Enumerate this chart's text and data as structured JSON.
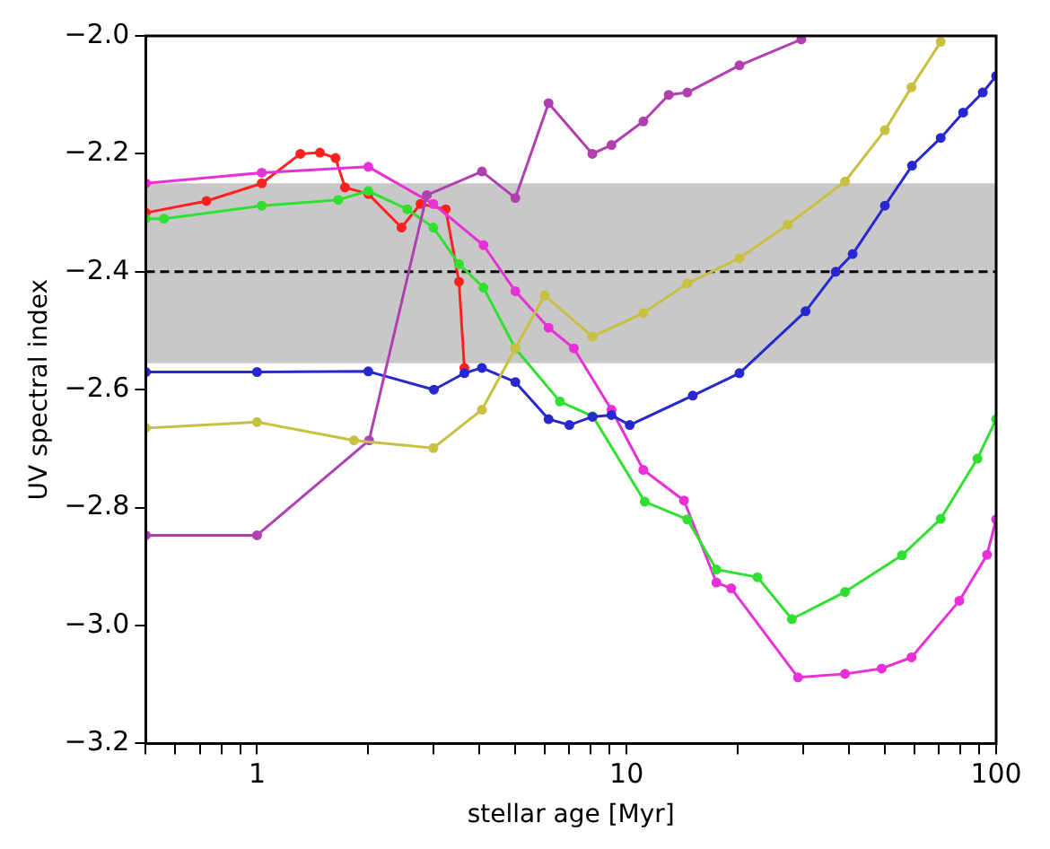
{
  "chart_data": {
    "type": "line",
    "xlabel": "stellar age [Myr]",
    "ylabel": "UV spectral index",
    "log": "x",
    "marker": "circle",
    "line_style": "solid",
    "grid": false,
    "legend": false,
    "xlim": [
      0.5,
      100
    ],
    "xticks": [
      {
        "value": 0.5,
        "label": null
      },
      {
        "value": 0.6,
        "label": null
      },
      {
        "value": 0.7,
        "label": null
      },
      {
        "value": 0.8,
        "label": null
      },
      {
        "value": 0.9,
        "label": null
      },
      1,
      {
        "value": 2,
        "label": null
      },
      {
        "value": 3,
        "label": null
      },
      {
        "value": 4,
        "label": null
      },
      {
        "value": 5,
        "label": null
      },
      {
        "value": 6,
        "label": null
      },
      {
        "value": 7,
        "label": null
      },
      {
        "value": 8,
        "label": null
      },
      {
        "value": 9,
        "label": null
      },
      10,
      {
        "value": 20,
        "label": null
      },
      {
        "value": 30,
        "label": null
      },
      {
        "value": 40,
        "label": null
      },
      {
        "value": 50,
        "label": null
      },
      {
        "value": 60,
        "label": null
      },
      {
        "value": 70,
        "label": null
      },
      {
        "value": 80,
        "label": null
      },
      {
        "value": 90,
        "label": null
      },
      100
    ],
    "ylim": [
      -3.2,
      -2.0
    ],
    "yticks": [
      {
        "value": -3.2,
        "label": "−3.2"
      },
      {
        "value": -3.0,
        "label": "−3.0"
      },
      {
        "value": -2.8,
        "label": "−2.8"
      },
      {
        "value": -2.6,
        "label": "−2.6"
      },
      {
        "value": -2.4,
        "label": "−2.4"
      },
      {
        "value": -2.2,
        "label": "−2.2"
      },
      {
        "value": -2.0,
        "label": "−2.0"
      }
    ],
    "bands": [
      {
        "axis": "y",
        "from": -2.555,
        "to": -2.25,
        "color": "#c8c8c8"
      }
    ],
    "ref_lines": [
      {
        "axis": "y",
        "value": -2.4,
        "color": "#000000",
        "line_style": "dashed"
      }
    ],
    "series": [
      {
        "color": "#c8c040",
        "x": [
          0.5,
          1,
          1.83,
          3.0,
          4.06,
          5.0,
          6.0,
          8.08,
          11.1,
          14.6,
          20.2,
          27.3,
          39,
          50,
          59,
          70.8
        ],
        "values": [
          -2.665,
          -2.655,
          -2.686,
          -2.699,
          -2.634,
          -2.53,
          -2.44,
          -2.51,
          -2.47,
          -2.42,
          -2.377,
          -2.32,
          -2.247,
          -2.16,
          -2.087,
          -2.01
        ]
      },
      {
        "color": "#b040b0",
        "x": [
          0.5,
          1,
          2.01,
          2.88,
          4.06,
          5.0,
          6.15,
          8.08,
          9.1,
          11.1,
          13,
          14.6,
          20.2,
          29.7
        ],
        "values": [
          -2.847,
          -2.847,
          -2.686,
          -2.27,
          -2.23,
          -2.275,
          -2.114,
          -2.2,
          -2.185,
          -2.145,
          -2.1,
          -2.096,
          -2.05,
          -2.006
        ]
      },
      {
        "color": "#2828d0",
        "x": [
          0.5,
          1,
          2.0,
          3.01,
          3.64,
          4.06,
          5.0,
          6.15,
          7.0,
          8.08,
          9.1,
          10.2,
          15.1,
          20.2,
          30.5,
          36.8,
          40.9,
          50,
          59.2,
          70.8,
          81.4,
          92,
          100
        ],
        "values": [
          -2.57,
          -2.57,
          -2.569,
          -2.6,
          -2.572,
          -2.563,
          -2.587,
          -2.65,
          -2.66,
          -2.646,
          -2.643,
          -2.66,
          -2.61,
          -2.572,
          -2.467,
          -2.4,
          -2.37,
          -2.288,
          -2.22,
          -2.173,
          -2.13,
          -2.096,
          -2.068
        ]
      },
      {
        "color": "#30e030",
        "x": [
          0.5,
          0.56,
          1.03,
          1.66,
          2.0,
          2.55,
          3.0,
          3.52,
          4.1,
          5.0,
          6.6,
          8.1,
          11.2,
          14.6,
          17.5,
          22.6,
          28,
          39,
          55.6,
          70.8,
          89,
          100
        ],
        "values": [
          -2.31,
          -2.31,
          -2.288,
          -2.278,
          -2.263,
          -2.294,
          -2.325,
          -2.387,
          -2.427,
          -2.53,
          -2.62,
          -2.645,
          -2.79,
          -2.82,
          -2.905,
          -2.918,
          -2.989,
          -2.943,
          -2.881,
          -2.819,
          -2.717,
          -2.65
        ]
      },
      {
        "color": "#e830d8",
        "x": [
          0.5,
          1.03,
          2.0,
          3.0,
          4.1,
          5.0,
          6.15,
          7.2,
          9.1,
          11.1,
          14.3,
          17.5,
          19.2,
          29.1,
          39,
          49,
          59,
          79.5,
          94.5,
          100
        ],
        "values": [
          -2.25,
          -2.232,
          -2.222,
          -2.285,
          -2.355,
          -2.433,
          -2.495,
          -2.53,
          -2.634,
          -2.736,
          -2.788,
          -2.927,
          -2.937,
          -3.088,
          -3.082,
          -3.073,
          -3.054,
          -2.958,
          -2.88,
          -2.82
        ]
      },
      {
        "color": "#ff2020",
        "x": [
          0.5,
          0.73,
          1.03,
          1.31,
          1.48,
          1.63,
          1.73,
          2.0,
          2.46,
          2.77,
          3.24,
          3.52,
          3.64
        ],
        "values": [
          -2.3,
          -2.28,
          -2.25,
          -2.2,
          -2.198,
          -2.207,
          -2.257,
          -2.268,
          -2.325,
          -2.285,
          -2.294,
          -2.417,
          -2.563
        ]
      }
    ]
  }
}
